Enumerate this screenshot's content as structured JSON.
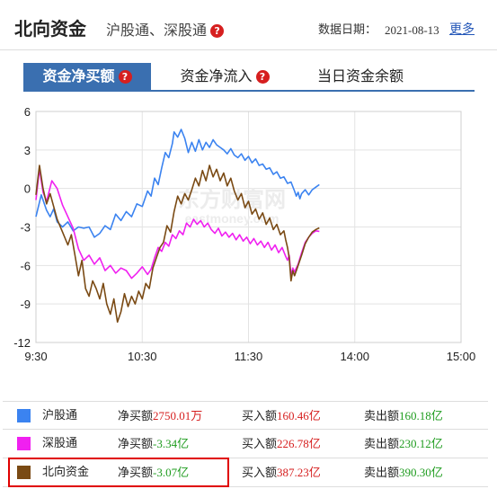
{
  "header": {
    "title": "北向资金",
    "subtitle": "沪股通、深股通",
    "help_mark": "?",
    "date_label": "数据日期：",
    "date": "2021-08-13",
    "more_link": "更多"
  },
  "tabs": [
    {
      "label": "资金净买额",
      "active": true,
      "help": true
    },
    {
      "label": "资金净流入",
      "active": false,
      "help": true
    },
    {
      "label": "当日资金余额",
      "active": false,
      "help": false
    }
  ],
  "watermark": {
    "cn": "东方财富网",
    "en": "eastmoney.com"
  },
  "chart_data": {
    "type": "line",
    "x_ticks": [
      "9:30",
      "10:30",
      "11:30",
      "14:00",
      "15:00"
    ],
    "y_ticks": [
      6,
      3,
      0,
      -3,
      -6,
      -9,
      -12
    ],
    "ylim": [
      -12,
      6
    ],
    "grid": true,
    "series": [
      {
        "name": "沪股通",
        "color": "#3b83f0",
        "points": [
          [
            0,
            -2.2
          ],
          [
            3,
            -0.5
          ],
          [
            6,
            -1.7
          ],
          [
            8,
            -2.2
          ],
          [
            10,
            -1.6
          ],
          [
            12,
            -2.6
          ],
          [
            15,
            -3.0
          ],
          [
            18,
            -2.6
          ],
          [
            21,
            -3.3
          ],
          [
            24,
            -3.0
          ],
          [
            27,
            -3.1
          ],
          [
            30,
            -3.0
          ],
          [
            33,
            -3.8
          ],
          [
            36,
            -3.5
          ],
          [
            39,
            -2.9
          ],
          [
            42,
            -3.2
          ],
          [
            45,
            -2.0
          ],
          [
            48,
            -2.5
          ],
          [
            51,
            -1.8
          ],
          [
            54,
            -2.2
          ],
          [
            57,
            -1.2
          ],
          [
            60,
            -1.4
          ],
          [
            63,
            -0.2
          ],
          [
            65,
            -0.6
          ],
          [
            67,
            0.8
          ],
          [
            69,
            0.3
          ],
          [
            71,
            1.6
          ],
          [
            73,
            2.8
          ],
          [
            75,
            2.4
          ],
          [
            77,
            3.5
          ],
          [
            78,
            4.4
          ],
          [
            80,
            4.0
          ],
          [
            82,
            4.6
          ],
          [
            84,
            3.9
          ],
          [
            86,
            2.8
          ],
          [
            88,
            3.6
          ],
          [
            90,
            2.9
          ],
          [
            92,
            3.8
          ],
          [
            94,
            3.0
          ],
          [
            96,
            3.6
          ],
          [
            98,
            3.2
          ],
          [
            100,
            3.8
          ],
          [
            102,
            3.4
          ],
          [
            104,
            3.2
          ],
          [
            106,
            3.0
          ],
          [
            108,
            2.7
          ],
          [
            110,
            3.1
          ],
          [
            112,
            2.6
          ],
          [
            114,
            2.4
          ],
          [
            116,
            2.7
          ],
          [
            118,
            2.2
          ],
          [
            120,
            2.5
          ],
          [
            122,
            2.0
          ],
          [
            124,
            2.3
          ],
          [
            126,
            1.8
          ],
          [
            128,
            1.9
          ],
          [
            130,
            1.5
          ],
          [
            132,
            1.6
          ],
          [
            134,
            1.1
          ],
          [
            136,
            1.3
          ],
          [
            138,
            0.8
          ],
          [
            140,
            0.9
          ],
          [
            142,
            0.4
          ],
          [
            144,
            0.5
          ],
          [
            146,
            -0.2
          ],
          [
            147,
            -0.6
          ],
          [
            148,
            -0.3
          ],
          [
            149,
            -0.8
          ],
          [
            150,
            -0.4
          ],
          [
            152,
            -0.1
          ],
          [
            154,
            -0.5
          ],
          [
            156,
            -0.1
          ],
          [
            158,
            0.1
          ],
          [
            160,
            0.3
          ]
        ]
      },
      {
        "name": "深股通",
        "color": "#f020f0",
        "points": [
          [
            0,
            -0.9
          ],
          [
            2,
            1.5
          ],
          [
            4,
            -0.3
          ],
          [
            6,
            -1.0
          ],
          [
            9,
            0.6
          ],
          [
            12,
            0.0
          ],
          [
            15,
            -1.3
          ],
          [
            18,
            -2.2
          ],
          [
            21,
            -3.1
          ],
          [
            24,
            -4.7
          ],
          [
            27,
            -5.6
          ],
          [
            30,
            -5.2
          ],
          [
            33,
            -5.9
          ],
          [
            36,
            -5.4
          ],
          [
            39,
            -6.4
          ],
          [
            42,
            -6.0
          ],
          [
            45,
            -6.6
          ],
          [
            48,
            -6.2
          ],
          [
            51,
            -6.4
          ],
          [
            54,
            -7.0
          ],
          [
            57,
            -6.6
          ],
          [
            60,
            -6.1
          ],
          [
            63,
            -6.7
          ],
          [
            65,
            -6.3
          ],
          [
            67,
            -5.4
          ],
          [
            69,
            -4.6
          ],
          [
            71,
            -4.9
          ],
          [
            73,
            -4.2
          ],
          [
            75,
            -4.5
          ],
          [
            77,
            -3.6
          ],
          [
            79,
            -3.9
          ],
          [
            81,
            -3.3
          ],
          [
            83,
            -3.6
          ],
          [
            85,
            -2.7
          ],
          [
            87,
            -3.0
          ],
          [
            89,
            -2.4
          ],
          [
            91,
            -2.8
          ],
          [
            93,
            -2.5
          ],
          [
            95,
            -3.0
          ],
          [
            97,
            -2.7
          ],
          [
            99,
            -3.2
          ],
          [
            101,
            -3.5
          ],
          [
            103,
            -3.1
          ],
          [
            105,
            -3.7
          ],
          [
            107,
            -3.4
          ],
          [
            109,
            -3.8
          ],
          [
            111,
            -3.5
          ],
          [
            113,
            -4.0
          ],
          [
            115,
            -3.6
          ],
          [
            117,
            -4.1
          ],
          [
            119,
            -3.8
          ],
          [
            121,
            -4.3
          ],
          [
            123,
            -3.9
          ],
          [
            125,
            -4.4
          ],
          [
            127,
            -4.1
          ],
          [
            129,
            -4.6
          ],
          [
            131,
            -4.2
          ],
          [
            133,
            -4.8
          ],
          [
            135,
            -4.4
          ],
          [
            137,
            -5.0
          ],
          [
            139,
            -4.6
          ],
          [
            141,
            -5.3
          ],
          [
            142,
            -5.6
          ],
          [
            143,
            -5.2
          ],
          [
            144,
            -6.8
          ],
          [
            145,
            -6.2
          ],
          [
            146,
            -6.5
          ],
          [
            148,
            -5.9
          ],
          [
            150,
            -5.0
          ],
          [
            152,
            -4.2
          ],
          [
            154,
            -3.8
          ],
          [
            156,
            -3.5
          ],
          [
            158,
            -3.3
          ],
          [
            160,
            -3.34
          ]
        ]
      },
      {
        "name": "北向资金",
        "color": "#7a4a14",
        "points": [
          [
            0,
            -0.5
          ],
          [
            2,
            1.8
          ],
          [
            4,
            0.0
          ],
          [
            6,
            -1.2
          ],
          [
            8,
            -0.4
          ],
          [
            10,
            -1.4
          ],
          [
            12,
            -2.4
          ],
          [
            15,
            -3.4
          ],
          [
            18,
            -4.4
          ],
          [
            20,
            -3.6
          ],
          [
            22,
            -5.2
          ],
          [
            24,
            -6.8
          ],
          [
            26,
            -5.6
          ],
          [
            28,
            -7.8
          ],
          [
            30,
            -8.4
          ],
          [
            32,
            -7.2
          ],
          [
            34,
            -7.8
          ],
          [
            36,
            -8.6
          ],
          [
            38,
            -7.4
          ],
          [
            40,
            -9.0
          ],
          [
            42,
            -9.8
          ],
          [
            44,
            -8.6
          ],
          [
            46,
            -10.4
          ],
          [
            48,
            -9.6
          ],
          [
            50,
            -8.2
          ],
          [
            52,
            -9.2
          ],
          [
            54,
            -8.4
          ],
          [
            56,
            -9.0
          ],
          [
            58,
            -8.0
          ],
          [
            60,
            -8.6
          ],
          [
            62,
            -7.4
          ],
          [
            64,
            -7.8
          ],
          [
            66,
            -6.2
          ],
          [
            68,
            -5.4
          ],
          [
            70,
            -4.6
          ],
          [
            72,
            -4.2
          ],
          [
            74,
            -2.9
          ],
          [
            76,
            -3.4
          ],
          [
            78,
            -1.8
          ],
          [
            80,
            -0.6
          ],
          [
            82,
            -1.2
          ],
          [
            84,
            -0.4
          ],
          [
            86,
            -0.9
          ],
          [
            88,
            -0.1
          ],
          [
            90,
            0.8
          ],
          [
            92,
            0.2
          ],
          [
            94,
            1.4
          ],
          [
            96,
            0.6
          ],
          [
            98,
            1.8
          ],
          [
            100,
            0.9
          ],
          [
            102,
            1.5
          ],
          [
            104,
            0.6
          ],
          [
            106,
            1.2
          ],
          [
            108,
            0.2
          ],
          [
            110,
            0.8
          ],
          [
            112,
            -0.2
          ],
          [
            114,
            -0.9
          ],
          [
            116,
            -0.4
          ],
          [
            118,
            -1.5
          ],
          [
            120,
            -1.0
          ],
          [
            122,
            -2.0
          ],
          [
            124,
            -1.6
          ],
          [
            126,
            -2.4
          ],
          [
            128,
            -1.9
          ],
          [
            130,
            -2.8
          ],
          [
            132,
            -2.3
          ],
          [
            134,
            -3.2
          ],
          [
            136,
            -2.8
          ],
          [
            138,
            -3.6
          ],
          [
            140,
            -3.3
          ],
          [
            141,
            -4.0
          ],
          [
            142,
            -4.6
          ],
          [
            143,
            -5.4
          ],
          [
            144,
            -7.2
          ],
          [
            145,
            -6.4
          ],
          [
            146,
            -6.8
          ],
          [
            148,
            -6.0
          ],
          [
            150,
            -5.2
          ],
          [
            152,
            -4.3
          ],
          [
            154,
            -3.8
          ],
          [
            156,
            -3.4
          ],
          [
            158,
            -3.2
          ],
          [
            160,
            -3.07
          ]
        ]
      }
    ]
  },
  "legend": [
    {
      "name": "沪股通",
      "color": "#3b83f0",
      "net_label": "净买额",
      "net_value": "2750.01万",
      "net_class": "red",
      "buy_label": "买入额",
      "buy_value": "160.46亿",
      "sell_label": "卖出额",
      "sell_value": "160.18亿"
    },
    {
      "name": "深股通",
      "color": "#f020f0",
      "net_label": "净买额",
      "net_value": "-3.34亿",
      "net_class": "green",
      "buy_label": "买入额",
      "buy_value": "226.78亿",
      "sell_label": "卖出额",
      "sell_value": "230.12亿"
    },
    {
      "name": "北向资金",
      "color": "#7a4a14",
      "net_label": "净买额",
      "net_value": "-3.07亿",
      "net_class": "green",
      "buy_label": "买入额",
      "buy_value": "387.23亿",
      "sell_label": "卖出额",
      "sell_value": "390.30亿"
    }
  ]
}
